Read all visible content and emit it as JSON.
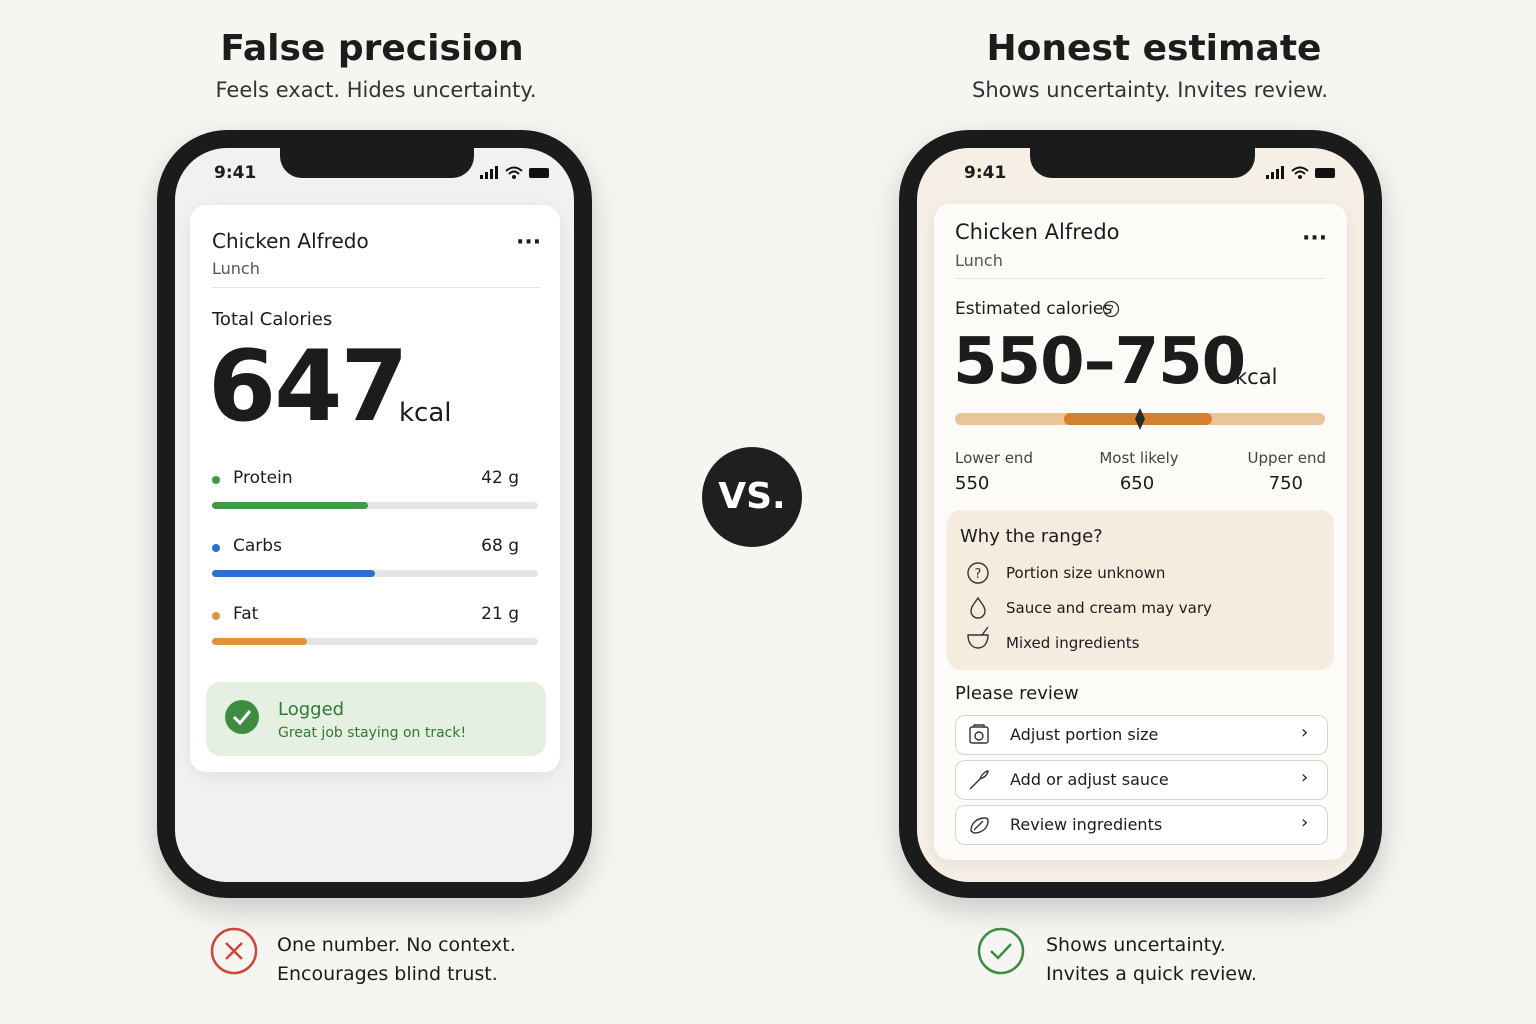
{
  "left": {
    "title": "False precision",
    "subtitle": "Feels exact. Hides uncertainty.",
    "phone": {
      "time": "9:41",
      "meal": "Chicken Alfredo",
      "meal_type": "Lunch",
      "label": "Total Calories",
      "calories": "647",
      "unit": "kcal",
      "macros": [
        {
          "name": "Protein",
          "amount": "42 g"
        },
        {
          "name": "Carbs",
          "amount": "68 g"
        },
        {
          "name": "Fat",
          "amount": "21 g"
        }
      ],
      "status": {
        "title": "Logged",
        "message": "Great job staying on track!"
      }
    },
    "verdict": [
      "One number. No context.",
      "Encourages blind trust."
    ]
  },
  "vs": "VS.",
  "right": {
    "title": "Honest estimate",
    "subtitle": "Shows uncertainty. Invites review.",
    "phone": {
      "time": "9:41",
      "meal": "Chicken Alfredo",
      "meal_type": "Lunch",
      "label": "Estimated calories",
      "calories": "550–750",
      "unit": "kcal",
      "range": {
        "lower_label": "Lower end",
        "likely_label": "Most likely",
        "upper_label": "Upper end",
        "lower": 550,
        "likely": 650,
        "upper": 750
      },
      "why": {
        "title": "Why the range?",
        "items": [
          "Portion size unknown",
          "Sauce and cream may vary",
          "Mixed ingredients"
        ]
      },
      "review": {
        "title": "Please review",
        "actions": [
          "Adjust portion size",
          "Add or adjust sauce",
          "Review ingredients"
        ]
      }
    },
    "verdict": [
      "Shows uncertainty.",
      "Invites a quick review."
    ]
  }
}
